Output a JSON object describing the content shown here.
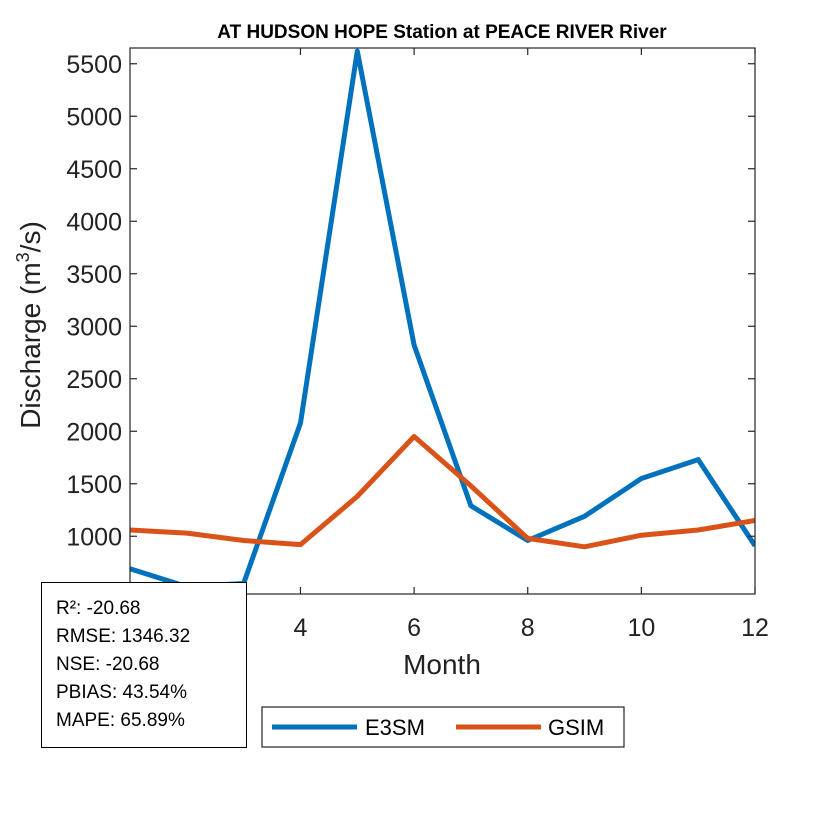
{
  "chart_data": {
    "type": "line",
    "title": "AT HUDSON HOPE  Station at  PEACE RIVER  River",
    "xlabel": "Month",
    "ylabel_main": "Discharge (m",
    "ylabel_sup": "3",
    "ylabel_tail": "/s)",
    "xlim": [
      1,
      12
    ],
    "ylim": [
      450,
      5650
    ],
    "xticks": [
      4,
      6,
      8,
      10,
      12
    ],
    "yticks": [
      1000,
      1500,
      2000,
      2500,
      3000,
      3500,
      4000,
      4500,
      5000,
      5500
    ],
    "grid": false,
    "legend_position": "bottom-center",
    "series": [
      {
        "name": "E3SM",
        "color": "#0072BD",
        "x": [
          1,
          2,
          3,
          4,
          5,
          6,
          7,
          8,
          9,
          10,
          11,
          12
        ],
        "y": [
          690,
          520,
          550,
          2080,
          5620,
          2820,
          1290,
          960,
          1190,
          1550,
          1730,
          910
        ]
      },
      {
        "name": "GSIM",
        "color": "#D95319",
        "x": [
          1,
          2,
          3,
          4,
          5,
          6,
          7,
          8,
          9,
          10,
          11,
          12
        ],
        "y": [
          1060,
          1030,
          960,
          920,
          1380,
          1950,
          1480,
          980,
          900,
          1010,
          1060,
          1150
        ]
      }
    ]
  },
  "stats": {
    "r2": "R²: -20.68",
    "rmse": "RMSE: 1346.32",
    "nse": "NSE: -20.68",
    "pbias": "PBIAS: 43.54%",
    "mape": "MAPE: 65.89%"
  }
}
